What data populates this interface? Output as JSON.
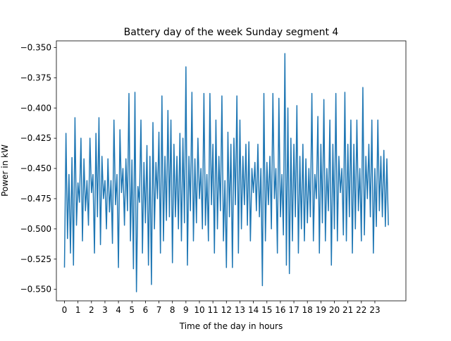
{
  "chart_data": {
    "type": "line",
    "title": "Battery day of the week Sunday segment 4",
    "xlabel": "Time of the day in hours",
    "ylabel": "Power in kW",
    "xlim": [
      -0.6,
      25.3
    ],
    "ylim": [
      -0.5595,
      -0.3445
    ],
    "x_ticks": [
      0,
      1,
      2,
      3,
      4,
      5,
      6,
      7,
      8,
      9,
      10,
      11,
      12,
      13,
      14,
      15,
      16,
      17,
      18,
      19,
      20,
      21,
      22,
      23
    ],
    "x_tick_labels": [
      "0",
      "1",
      "2",
      "3",
      "4",
      "5",
      "6",
      "7",
      "8",
      "9",
      "10",
      "11",
      "12",
      "13",
      "14",
      "15",
      "16",
      "17",
      "18",
      "19",
      "20",
      "21",
      "22",
      "23"
    ],
    "y_ticks": [
      -0.55,
      -0.525,
      -0.5,
      -0.475,
      -0.45,
      -0.425,
      -0.4,
      -0.375,
      -0.35
    ],
    "y_tick_labels": [
      "−0.550",
      "−0.525",
      "−0.500",
      "−0.475",
      "−0.450",
      "−0.425",
      "−0.400",
      "−0.375",
      "−0.350"
    ],
    "grid": false,
    "series": [
      {
        "color": "#1f77b4",
        "x_start": 0,
        "x_end": 24,
        "values": [
          -0.532,
          -0.421,
          -0.508,
          -0.455,
          -0.52,
          -0.441,
          -0.53,
          -0.408,
          -0.497,
          -0.462,
          -0.478,
          -0.425,
          -0.51,
          -0.442,
          -0.485,
          -0.46,
          -0.497,
          -0.425,
          -0.47,
          -0.455,
          -0.52,
          -0.421,
          -0.49,
          -0.408,
          -0.513,
          -0.44,
          -0.475,
          -0.46,
          -0.5,
          -0.442,
          -0.486,
          -0.46,
          -0.512,
          -0.41,
          -0.48,
          -0.455,
          -0.532,
          -0.418,
          -0.47,
          -0.45,
          -0.497,
          -0.442,
          -0.485,
          -0.388,
          -0.51,
          -0.443,
          -0.533,
          -0.387,
          -0.552,
          -0.465,
          -0.478,
          -0.41,
          -0.52,
          -0.445,
          -0.495,
          -0.431,
          -0.53,
          -0.44,
          -0.546,
          -0.412,
          -0.5,
          -0.445,
          -0.475,
          -0.42,
          -0.52,
          -0.39,
          -0.51,
          -0.44,
          -0.493,
          -0.402,
          -0.49,
          -0.41,
          -0.528,
          -0.43,
          -0.49,
          -0.44,
          -0.5,
          -0.421,
          -0.51,
          -0.425,
          -0.495,
          -0.366,
          -0.53,
          -0.44,
          -0.485,
          -0.387,
          -0.51,
          -0.442,
          -0.495,
          -0.425,
          -0.475,
          -0.45,
          -0.5,
          -0.388,
          -0.497,
          -0.455,
          -0.51,
          -0.388,
          -0.48,
          -0.43,
          -0.52,
          -0.41,
          -0.5,
          -0.44,
          -0.485,
          -0.39,
          -0.51,
          -0.46,
          -0.532,
          -0.42,
          -0.49,
          -0.43,
          -0.532,
          -0.425,
          -0.48,
          -0.39,
          -0.52,
          -0.41,
          -0.5,
          -0.44,
          -0.48,
          -0.43,
          -0.497,
          -0.428,
          -0.51,
          -0.45,
          -0.47,
          -0.445,
          -0.485,
          -0.43,
          -0.49,
          -0.45,
          -0.547,
          -0.388,
          -0.51,
          -0.445,
          -0.48,
          -0.44,
          -0.5,
          -0.388,
          -0.475,
          -0.45,
          -0.52,
          -0.392,
          -0.49,
          -0.455,
          -0.505,
          -0.355,
          -0.53,
          -0.4,
          -0.537,
          -0.425,
          -0.51,
          -0.43,
          -0.49,
          -0.398,
          -0.52,
          -0.44,
          -0.5,
          -0.43,
          -0.51,
          -0.442,
          -0.495,
          -0.45,
          -0.49,
          -0.388,
          -0.51,
          -0.455,
          -0.475,
          -0.407,
          -0.52,
          -0.43,
          -0.495,
          -0.393,
          -0.51,
          -0.45,
          -0.485,
          -0.41,
          -0.53,
          -0.43,
          -0.5,
          -0.388,
          -0.51,
          -0.44,
          -0.47,
          -0.45,
          -0.505,
          -0.387,
          -0.51,
          -0.43,
          -0.49,
          -0.41,
          -0.52,
          -0.43,
          -0.5,
          -0.41,
          -0.485,
          -0.45,
          -0.51,
          -0.383,
          -0.505,
          -0.44,
          -0.475,
          -0.43,
          -0.49,
          -0.41,
          -0.52,
          -0.45,
          -0.498,
          -0.41,
          -0.485,
          -0.44,
          -0.49,
          -0.435,
          -0.498,
          -0.442,
          -0.497
        ]
      }
    ]
  }
}
